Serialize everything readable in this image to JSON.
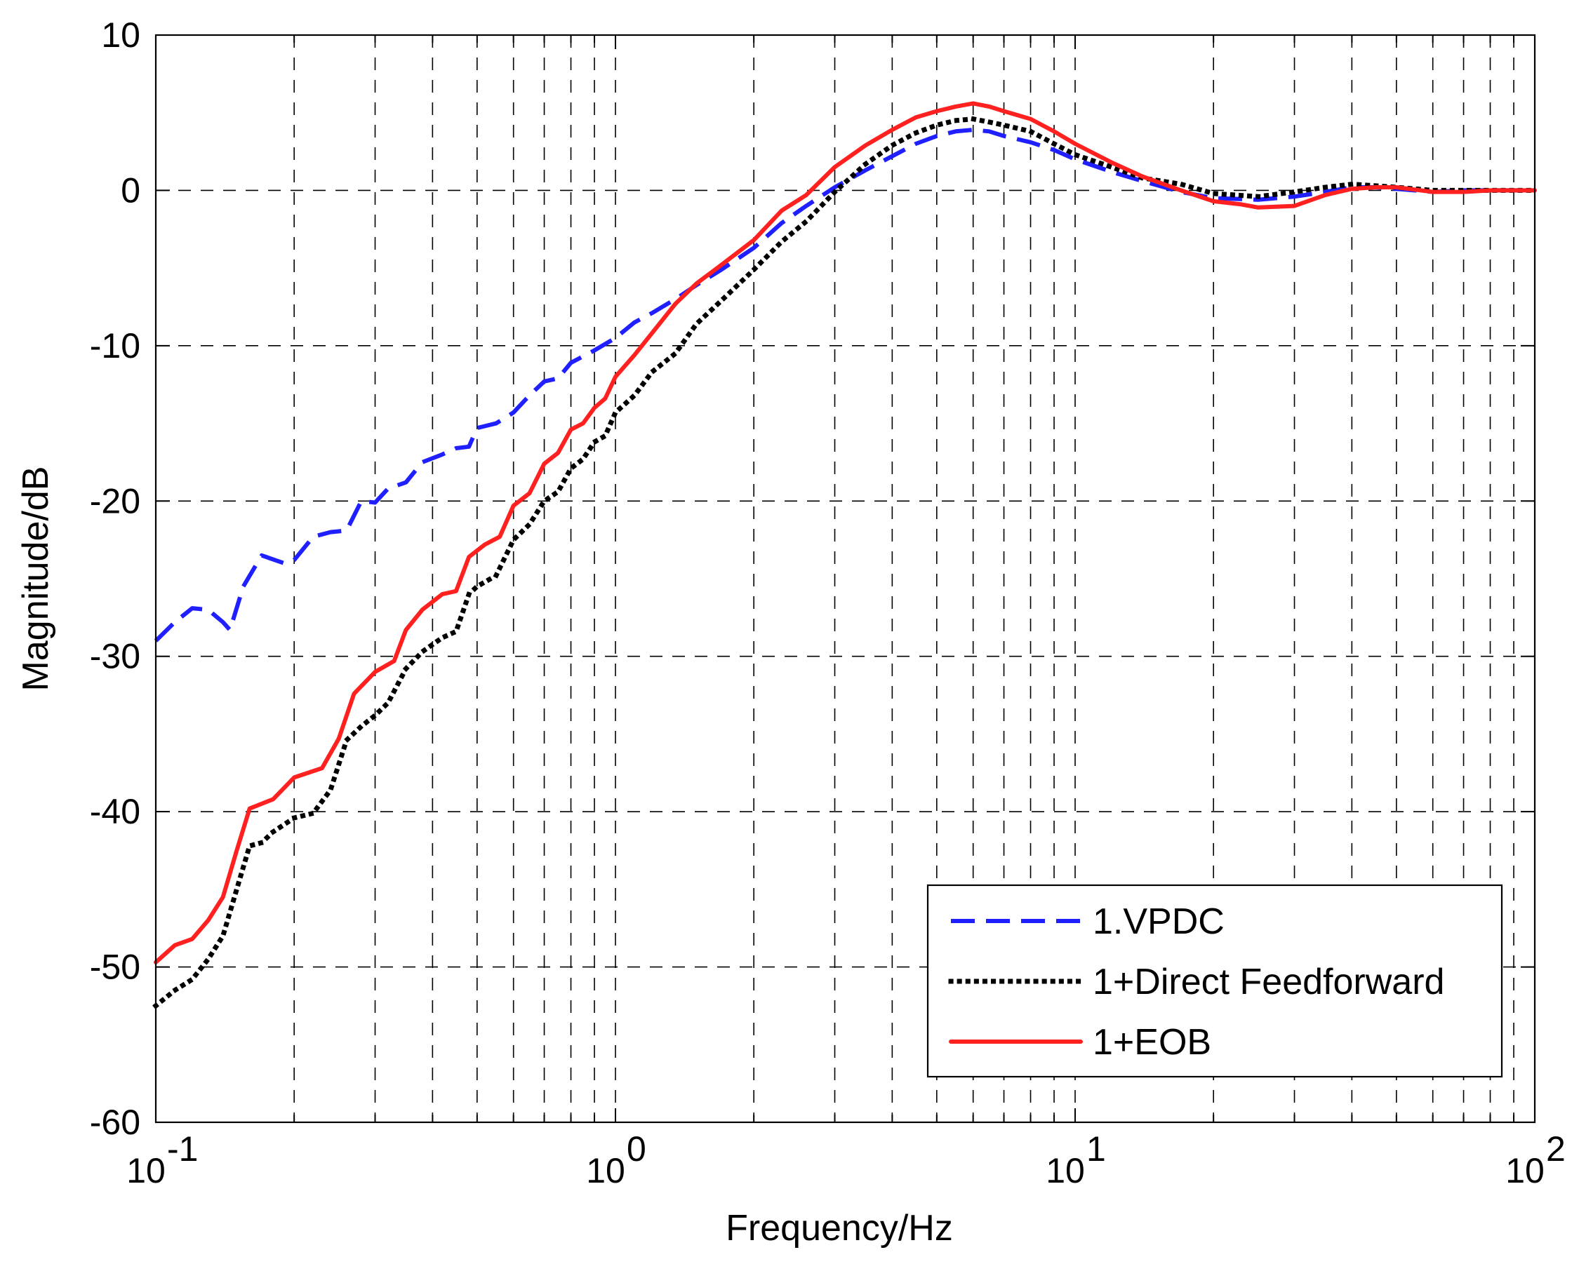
{
  "chart_data": {
    "type": "line",
    "title": "",
    "xlabel": "Frequency/Hz",
    "ylabel": "Magnitude/dB",
    "xscale": "log",
    "xlim": [
      0.1,
      100
    ],
    "ylim": [
      -60,
      10
    ],
    "grid": true,
    "legend_position": "bottom-right",
    "x_ticks": [
      {
        "base": "10",
        "exp": "-1",
        "value": 0.1
      },
      {
        "base": "10",
        "exp": "0",
        "value": 1
      },
      {
        "base": "10",
        "exp": "1",
        "value": 10
      },
      {
        "base": "10",
        "exp": "2",
        "value": 100
      }
    ],
    "y_ticks": [
      {
        "label": "10",
        "value": 10
      },
      {
        "label": "0",
        "value": 0
      },
      {
        "label": "-10",
        "value": -10
      },
      {
        "label": "-20",
        "value": -20
      },
      {
        "label": "-30",
        "value": -30
      },
      {
        "label": "-40",
        "value": -40
      },
      {
        "label": "-50",
        "value": -50
      },
      {
        "label": "-60",
        "value": -60
      }
    ],
    "series": [
      {
        "name": "1.VPDC",
        "color": "#1f1fff",
        "dash": "dashed",
        "points": [
          [
            0.1,
            -29
          ],
          [
            0.11,
            -27.8
          ],
          [
            0.12,
            -26.9
          ],
          [
            0.13,
            -27
          ],
          [
            0.14,
            -27.8
          ],
          [
            0.145,
            -28.3
          ],
          [
            0.155,
            -25.5
          ],
          [
            0.17,
            -23.5
          ],
          [
            0.19,
            -24
          ],
          [
            0.2,
            -23.8
          ],
          [
            0.22,
            -22.3
          ],
          [
            0.24,
            -22
          ],
          [
            0.26,
            -21.9
          ],
          [
            0.28,
            -20
          ],
          [
            0.3,
            -20.1
          ],
          [
            0.32,
            -19.2
          ],
          [
            0.35,
            -18.8
          ],
          [
            0.38,
            -17.5
          ],
          [
            0.42,
            -17
          ],
          [
            0.45,
            -16.6
          ],
          [
            0.48,
            -16.5
          ],
          [
            0.5,
            -15.3
          ],
          [
            0.55,
            -15
          ],
          [
            0.6,
            -14.3
          ],
          [
            0.65,
            -13.2
          ],
          [
            0.7,
            -12.3
          ],
          [
            0.75,
            -12.1
          ],
          [
            0.8,
            -11.1
          ],
          [
            0.9,
            -10.3
          ],
          [
            1,
            -9.5
          ],
          [
            1.1,
            -8.5
          ],
          [
            1.2,
            -7.9
          ],
          [
            1.35,
            -7
          ],
          [
            1.5,
            -6.1
          ],
          [
            1.7,
            -5.1
          ],
          [
            2,
            -3.7
          ],
          [
            2.3,
            -2.1
          ],
          [
            2.6,
            -1
          ],
          [
            3,
            0.2
          ],
          [
            3.5,
            1.3
          ],
          [
            4,
            2.2
          ],
          [
            4.5,
            3
          ],
          [
            5,
            3.5
          ],
          [
            5.5,
            3.8
          ],
          [
            6,
            3.9
          ],
          [
            6.5,
            3.8
          ],
          [
            7,
            3.5
          ],
          [
            8,
            3.1
          ],
          [
            9,
            2.6
          ],
          [
            10,
            2
          ],
          [
            12,
            1.2
          ],
          [
            14,
            0.6
          ],
          [
            17,
            -0.1
          ],
          [
            20,
            -0.5
          ],
          [
            25,
            -0.6
          ],
          [
            30,
            -0.4
          ],
          [
            35,
            -0.1
          ],
          [
            40,
            0.2
          ],
          [
            45,
            0.2
          ],
          [
            50,
            0.1
          ],
          [
            60,
            -0.1
          ],
          [
            70,
            0
          ],
          [
            80,
            0
          ],
          [
            100,
            0
          ]
        ]
      },
      {
        "name": "1+Direct Feedforward",
        "color": "#000000",
        "dash": "dotted",
        "points": [
          [
            0.1,
            -52.5
          ],
          [
            0.11,
            -51.5
          ],
          [
            0.12,
            -50.8
          ],
          [
            0.13,
            -49.5
          ],
          [
            0.14,
            -48
          ],
          [
            0.15,
            -45
          ],
          [
            0.16,
            -42.2
          ],
          [
            0.17,
            -42
          ],
          [
            0.18,
            -41.3
          ],
          [
            0.2,
            -40.4
          ],
          [
            0.22,
            -40.1
          ],
          [
            0.24,
            -38.6
          ],
          [
            0.26,
            -35.4
          ],
          [
            0.28,
            -34.5
          ],
          [
            0.3,
            -33.8
          ],
          [
            0.32,
            -33
          ],
          [
            0.35,
            -30.8
          ],
          [
            0.38,
            -29.7
          ],
          [
            0.42,
            -28.8
          ],
          [
            0.45,
            -28.4
          ],
          [
            0.48,
            -26
          ],
          [
            0.5,
            -25.5
          ],
          [
            0.55,
            -24.8
          ],
          [
            0.6,
            -22.5
          ],
          [
            0.65,
            -21.5
          ],
          [
            0.7,
            -20
          ],
          [
            0.75,
            -19.4
          ],
          [
            0.8,
            -17.9
          ],
          [
            0.85,
            -17.3
          ],
          [
            0.9,
            -16.2
          ],
          [
            0.95,
            -15.8
          ],
          [
            1,
            -14.3
          ],
          [
            1.1,
            -13.2
          ],
          [
            1.2,
            -11.7
          ],
          [
            1.35,
            -10.5
          ],
          [
            1.5,
            -8.6
          ],
          [
            1.7,
            -7.1
          ],
          [
            2,
            -5.1
          ],
          [
            2.3,
            -3.3
          ],
          [
            2.6,
            -2
          ],
          [
            3,
            -0.1
          ],
          [
            3.5,
            1.7
          ],
          [
            4,
            2.9
          ],
          [
            4.5,
            3.7
          ],
          [
            5,
            4.2
          ],
          [
            5.5,
            4.5
          ],
          [
            6,
            4.6
          ],
          [
            6.5,
            4.4
          ],
          [
            7,
            4.2
          ],
          [
            8,
            3.8
          ],
          [
            9,
            3
          ],
          [
            10,
            2.3
          ],
          [
            12,
            1.5
          ],
          [
            14,
            0.8
          ],
          [
            17,
            0.4
          ],
          [
            20,
            -0.2
          ],
          [
            25,
            -0.4
          ],
          [
            30,
            -0.1
          ],
          [
            35,
            0.2
          ],
          [
            40,
            0.4
          ],
          [
            45,
            0.3
          ],
          [
            50,
            0.2
          ],
          [
            60,
            0
          ],
          [
            70,
            0
          ],
          [
            80,
            0
          ],
          [
            100,
            0
          ]
        ]
      },
      {
        "name": "1+EOB",
        "color": "#ff2020",
        "dash": "solid",
        "points": [
          [
            0.1,
            -49.7
          ],
          [
            0.11,
            -48.6
          ],
          [
            0.12,
            -48.2
          ],
          [
            0.13,
            -47
          ],
          [
            0.14,
            -45.5
          ],
          [
            0.15,
            -42.5
          ],
          [
            0.16,
            -39.8
          ],
          [
            0.18,
            -39.2
          ],
          [
            0.2,
            -37.8
          ],
          [
            0.23,
            -37.2
          ],
          [
            0.25,
            -35.3
          ],
          [
            0.27,
            -32.4
          ],
          [
            0.3,
            -31
          ],
          [
            0.33,
            -30.3
          ],
          [
            0.35,
            -28.3
          ],
          [
            0.38,
            -27
          ],
          [
            0.42,
            -26
          ],
          [
            0.45,
            -25.8
          ],
          [
            0.48,
            -23.6
          ],
          [
            0.52,
            -22.8
          ],
          [
            0.56,
            -22.3
          ],
          [
            0.6,
            -20.3
          ],
          [
            0.65,
            -19.5
          ],
          [
            0.7,
            -17.6
          ],
          [
            0.75,
            -16.9
          ],
          [
            0.8,
            -15.4
          ],
          [
            0.85,
            -15
          ],
          [
            0.9,
            -14
          ],
          [
            0.95,
            -13.4
          ],
          [
            1,
            -12
          ],
          [
            1.1,
            -10.6
          ],
          [
            1.2,
            -9.2
          ],
          [
            1.35,
            -7.3
          ],
          [
            1.5,
            -6
          ],
          [
            1.7,
            -4.8
          ],
          [
            2,
            -3.2
          ],
          [
            2.3,
            -1.3
          ],
          [
            2.6,
            -0.3
          ],
          [
            3,
            1.5
          ],
          [
            3.5,
            2.9
          ],
          [
            4,
            3.9
          ],
          [
            4.5,
            4.7
          ],
          [
            5,
            5.1
          ],
          [
            5.5,
            5.4
          ],
          [
            6,
            5.6
          ],
          [
            6.5,
            5.4
          ],
          [
            7,
            5.1
          ],
          [
            8,
            4.6
          ],
          [
            9,
            3.8
          ],
          [
            10,
            3
          ],
          [
            12,
            1.8
          ],
          [
            14,
            0.9
          ],
          [
            17,
            0
          ],
          [
            20,
            -0.7
          ],
          [
            23,
            -0.9
          ],
          [
            25,
            -1.1
          ],
          [
            30,
            -1
          ],
          [
            35,
            -0.3
          ],
          [
            40,
            0.1
          ],
          [
            45,
            0.2
          ],
          [
            50,
            0.2
          ],
          [
            60,
            -0.1
          ],
          [
            70,
            -0.1
          ],
          [
            80,
            0
          ],
          [
            100,
            0
          ]
        ]
      }
    ]
  }
}
